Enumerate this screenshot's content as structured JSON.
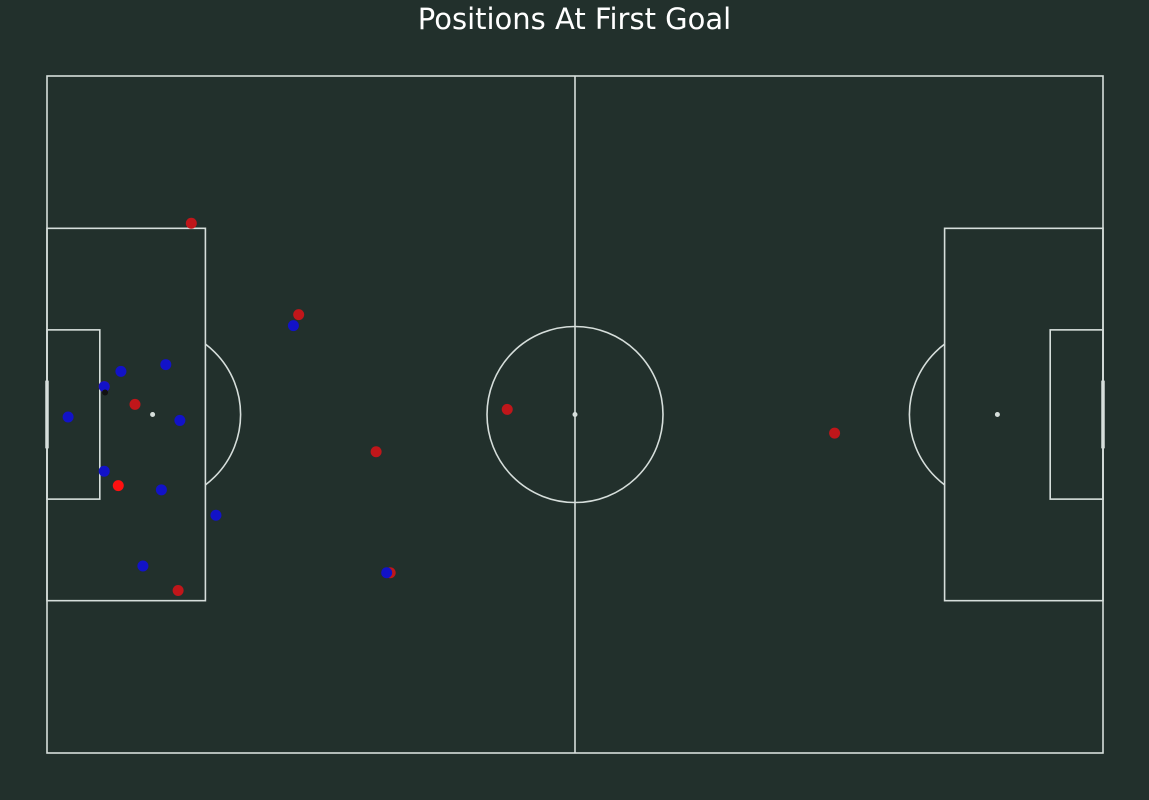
{
  "title": "Positions At First Goal",
  "colors": {
    "background": "#22302c",
    "lines": "#d6dedb",
    "team_red": "#c0161a",
    "team_blue": "#1212c8",
    "scorer": "#ff1010",
    "ball": "#111111"
  },
  "chart_data": {
    "type": "scatter",
    "title": "Positions At First Goal",
    "xlim": [
      0,
      120
    ],
    "ylim": [
      0,
      80
    ],
    "grid": false,
    "series": [
      {
        "color": "#c0161a",
        "points": [
          {
            "x": 16.4,
            "y": 62.6
          },
          {
            "x": 28.6,
            "y": 51.8
          },
          {
            "x": 10.0,
            "y": 41.2
          },
          {
            "x": 52.3,
            "y": 40.6
          },
          {
            "x": 37.4,
            "y": 35.6
          },
          {
            "x": 39.0,
            "y": 21.3
          },
          {
            "x": 14.9,
            "y": 19.2
          },
          {
            "x": 89.5,
            "y": 37.8
          },
          {
            "x": 6.5,
            "y": 43.3
          }
        ]
      },
      {
        "color": "#1212c8",
        "points": [
          {
            "x": 28.0,
            "y": 50.5
          },
          {
            "x": 8.4,
            "y": 45.1
          },
          {
            "x": 13.5,
            "y": 45.9
          },
          {
            "x": 6.5,
            "y": 43.3
          },
          {
            "x": 2.4,
            "y": 39.7
          },
          {
            "x": 15.1,
            "y": 39.3
          },
          {
            "x": 6.5,
            "y": 33.3
          },
          {
            "x": 13.0,
            "y": 31.1
          },
          {
            "x": 19.2,
            "y": 28.1
          },
          {
            "x": 10.9,
            "y": 22.1
          },
          {
            "x": 38.6,
            "y": 21.3
          }
        ]
      },
      {
        "color": "#ff1010",
        "points": [
          {
            "x": 8.1,
            "y": 31.6
          }
        ]
      },
      {
        "color": "#111111",
        "points": [
          {
            "x": 6.6,
            "y": 42.6
          }
        ]
      }
    ]
  }
}
